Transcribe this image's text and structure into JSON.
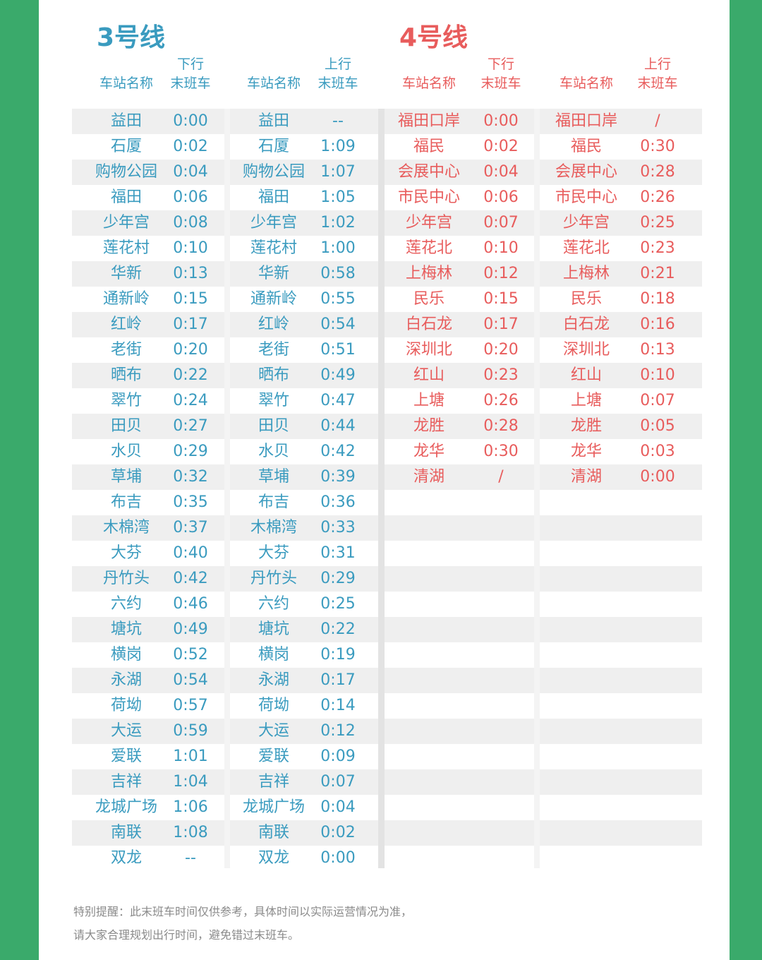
{
  "colors": {
    "line3": "#3a9bbf",
    "line4": "#e85c5c",
    "border": "#3aaa6b"
  },
  "line3": {
    "title": "3号线",
    "headers": {
      "down_dir": "下行",
      "up_dir": "上行",
      "station": "车站名称",
      "last": "末班车"
    },
    "rows": [
      [
        "益田",
        "0:00",
        "益田",
        "--"
      ],
      [
        "石厦",
        "0:02",
        "石厦",
        "1:09"
      ],
      [
        "购物公园",
        "0:04",
        "购物公园",
        "1:07"
      ],
      [
        "福田",
        "0:06",
        "福田",
        "1:05"
      ],
      [
        "少年宫",
        "0:08",
        "少年宫",
        "1:02"
      ],
      [
        "莲花村",
        "0:10",
        "莲花村",
        "1:00"
      ],
      [
        "华新",
        "0:13",
        "华新",
        "0:58"
      ],
      [
        "通新岭",
        "0:15",
        "通新岭",
        "0:55"
      ],
      [
        "红岭",
        "0:17",
        "红岭",
        "0:54"
      ],
      [
        "老街",
        "0:20",
        "老街",
        "0:51"
      ],
      [
        "晒布",
        "0:22",
        "晒布",
        "0:49"
      ],
      [
        "翠竹",
        "0:24",
        "翠竹",
        "0:47"
      ],
      [
        "田贝",
        "0:27",
        "田贝",
        "0:44"
      ],
      [
        "水贝",
        "0:29",
        "水贝",
        "0:42"
      ],
      [
        "草埔",
        "0:32",
        "草埔",
        "0:39"
      ],
      [
        "布吉",
        "0:35",
        "布吉",
        "0:36"
      ],
      [
        "木棉湾",
        "0:37",
        "木棉湾",
        "0:33"
      ],
      [
        "大芬",
        "0:40",
        "大芬",
        "0:31"
      ],
      [
        "丹竹头",
        "0:42",
        "丹竹头",
        "0:29"
      ],
      [
        "六约",
        "0:46",
        "六约",
        "0:25"
      ],
      [
        "塘坑",
        "0:49",
        "塘坑",
        "0:22"
      ],
      [
        "横岗",
        "0:52",
        "横岗",
        "0:19"
      ],
      [
        "永湖",
        "0:54",
        "永湖",
        "0:17"
      ],
      [
        "荷坳",
        "0:57",
        "荷坳",
        "0:14"
      ],
      [
        "大运",
        "0:59",
        "大运",
        "0:12"
      ],
      [
        "爱联",
        "1:01",
        "爱联",
        "0:09"
      ],
      [
        "吉祥",
        "1:04",
        "吉祥",
        "0:07"
      ],
      [
        "龙城广场",
        "1:06",
        "龙城广场",
        "0:04"
      ],
      [
        "南联",
        "1:08",
        "南联",
        "0:02"
      ],
      [
        "双龙",
        "--",
        "双龙",
        "0:00"
      ]
    ]
  },
  "line4": {
    "title": "4号线",
    "headers": {
      "down_dir": "下行",
      "up_dir": "上行",
      "station": "车站名称",
      "last": "末班车"
    },
    "rows": [
      [
        "福田口岸",
        "0:00",
        "福田口岸",
        "/"
      ],
      [
        "福民",
        "0:02",
        "福民",
        "0:30"
      ],
      [
        "会展中心",
        "0:04",
        "会展中心",
        "0:28"
      ],
      [
        "市民中心",
        "0:06",
        "市民中心",
        "0:26"
      ],
      [
        "少年宫",
        "0:07",
        "少年宫",
        "0:25"
      ],
      [
        "莲花北",
        "0:10",
        "莲花北",
        "0:23"
      ],
      [
        "上梅林",
        "0:12",
        "上梅林",
        "0:21"
      ],
      [
        "民乐",
        "0:15",
        "民乐",
        "0:18"
      ],
      [
        "白石龙",
        "0:17",
        "白石龙",
        "0:16"
      ],
      [
        "深圳北",
        "0:20",
        "深圳北",
        "0:13"
      ],
      [
        "红山",
        "0:23",
        "红山",
        "0:10"
      ],
      [
        "上塘",
        "0:26",
        "上塘",
        "0:07"
      ],
      [
        "龙胜",
        "0:28",
        "龙胜",
        "0:05"
      ],
      [
        "龙华",
        "0:30",
        "龙华",
        "0:03"
      ],
      [
        "清湖",
        "/",
        "清湖",
        "0:00"
      ]
    ]
  },
  "note": {
    "line1": "特别提醒：此末班车时间仅供参考，具体时间以实际运营情况为准，",
    "line2": "请大家合理规划出行时间，避免错过末班车。"
  }
}
